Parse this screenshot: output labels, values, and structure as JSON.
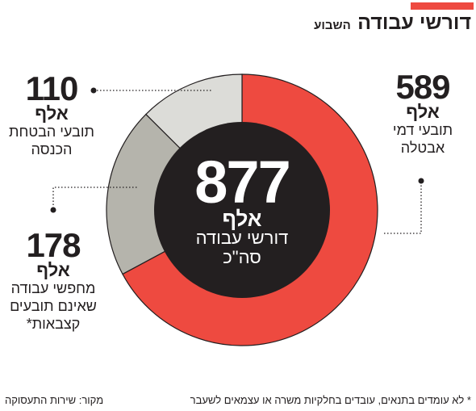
{
  "header": {
    "title": "דורשי עבודה",
    "subtitle": "השבוע"
  },
  "chart_data": {
    "type": "pie",
    "donut": true,
    "total": {
      "value": "877",
      "unit": "אלף",
      "label_line1": "דורשי עבודה",
      "label_line2": "סה\"כ"
    },
    "slices": [
      {
        "value": 589,
        "value_text": "589",
        "unit": "אלף",
        "label_lines": [
          "תובעי דמי",
          "אבטלה"
        ],
        "color": "#ee4a40"
      },
      {
        "value": 178,
        "value_text": "178",
        "unit": "אלף",
        "label_lines": [
          "מחפשי עבודה",
          "שאינם תובעים",
          "קצבאות*"
        ],
        "color": "#b5b4ac"
      },
      {
        "value": 110,
        "value_text": "110",
        "unit": "אלף",
        "label_lines": [
          "תובעי הבטחת",
          "הכנסה"
        ],
        "color": "#dcdcd8"
      }
    ],
    "center_color": "#231f20"
  },
  "footer": {
    "footnote": "* לא עומדים בתנאים, עובדים בחלקיות משרה או עצמאים לשעבר",
    "source": "מקור: שירות התעסוקה"
  }
}
